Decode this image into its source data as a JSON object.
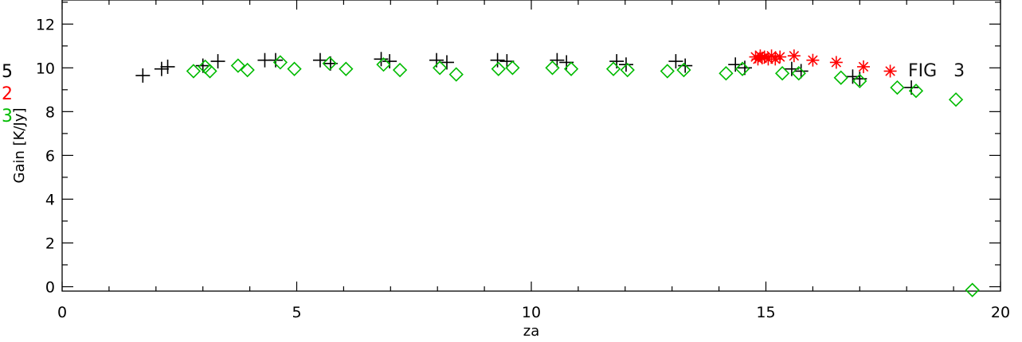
{
  "chart_data": {
    "type": "scatter",
    "title": "",
    "xlabel": "za",
    "ylabel": "Gain [K/Jy]",
    "xlim": [
      0,
      20
    ],
    "ylim": [
      -0.2,
      13.1
    ],
    "xticks": [
      0,
      5,
      10,
      15,
      20
    ],
    "yticks": [
      0,
      2,
      4,
      6,
      8,
      10,
      12
    ],
    "grid": false,
    "annotation": "FIG   3",
    "side_labels": [
      {
        "text": "5",
        "color": "#000000"
      },
      {
        "text": "2",
        "color": "#ff0000"
      },
      {
        "text": "3",
        "color": "#00bb00"
      }
    ],
    "series": [
      {
        "marker": "plus",
        "color": "#000000",
        "x": [
          1.72,
          2.12,
          2.25,
          3.0,
          3.32,
          4.32,
          4.55,
          5.5,
          5.72,
          6.8,
          6.98,
          7.98,
          8.2,
          9.28,
          9.48,
          10.55,
          10.75,
          11.82,
          12.02,
          13.08,
          13.28,
          14.35,
          14.55,
          15.55,
          15.75,
          16.85,
          17.0,
          18.1
        ],
        "y": [
          9.65,
          9.95,
          10.05,
          10.1,
          10.3,
          10.35,
          10.35,
          10.35,
          10.2,
          10.4,
          10.3,
          10.35,
          10.25,
          10.35,
          10.3,
          10.35,
          10.25,
          10.3,
          10.15,
          10.3,
          10.1,
          10.15,
          10.0,
          9.95,
          9.85,
          9.6,
          9.5,
          9.1
        ]
      },
      {
        "marker": "diamond",
        "color": "#00bb00",
        "x": [
          2.8,
          3.05,
          3.15,
          3.75,
          3.95,
          4.65,
          4.95,
          5.7,
          6.05,
          6.85,
          7.2,
          8.05,
          8.4,
          9.3,
          9.6,
          10.45,
          10.85,
          11.75,
          12.05,
          12.9,
          13.25,
          14.15,
          14.5,
          15.35,
          15.7,
          16.6,
          17.0,
          17.8,
          18.2,
          19.05,
          19.4
        ],
        "y": [
          9.85,
          10.05,
          9.85,
          10.1,
          9.9,
          10.25,
          9.95,
          10.2,
          9.95,
          10.15,
          9.9,
          10.0,
          9.7,
          9.95,
          10.0,
          10.0,
          9.95,
          9.95,
          9.9,
          9.85,
          9.9,
          9.75,
          9.95,
          9.75,
          9.75,
          9.55,
          9.4,
          9.1,
          8.95,
          8.55,
          -0.15
        ]
      },
      {
        "marker": "asterisk",
        "color": "#ff0000",
        "x": [
          14.78,
          14.83,
          14.88,
          14.92,
          14.97,
          15.05,
          15.12,
          15.2,
          15.3,
          15.6,
          16.0,
          16.5,
          17.08,
          17.65
        ],
        "y": [
          10.5,
          10.4,
          10.55,
          10.45,
          10.5,
          10.4,
          10.55,
          10.4,
          10.5,
          10.55,
          10.35,
          10.25,
          10.05,
          9.85
        ]
      }
    ]
  }
}
